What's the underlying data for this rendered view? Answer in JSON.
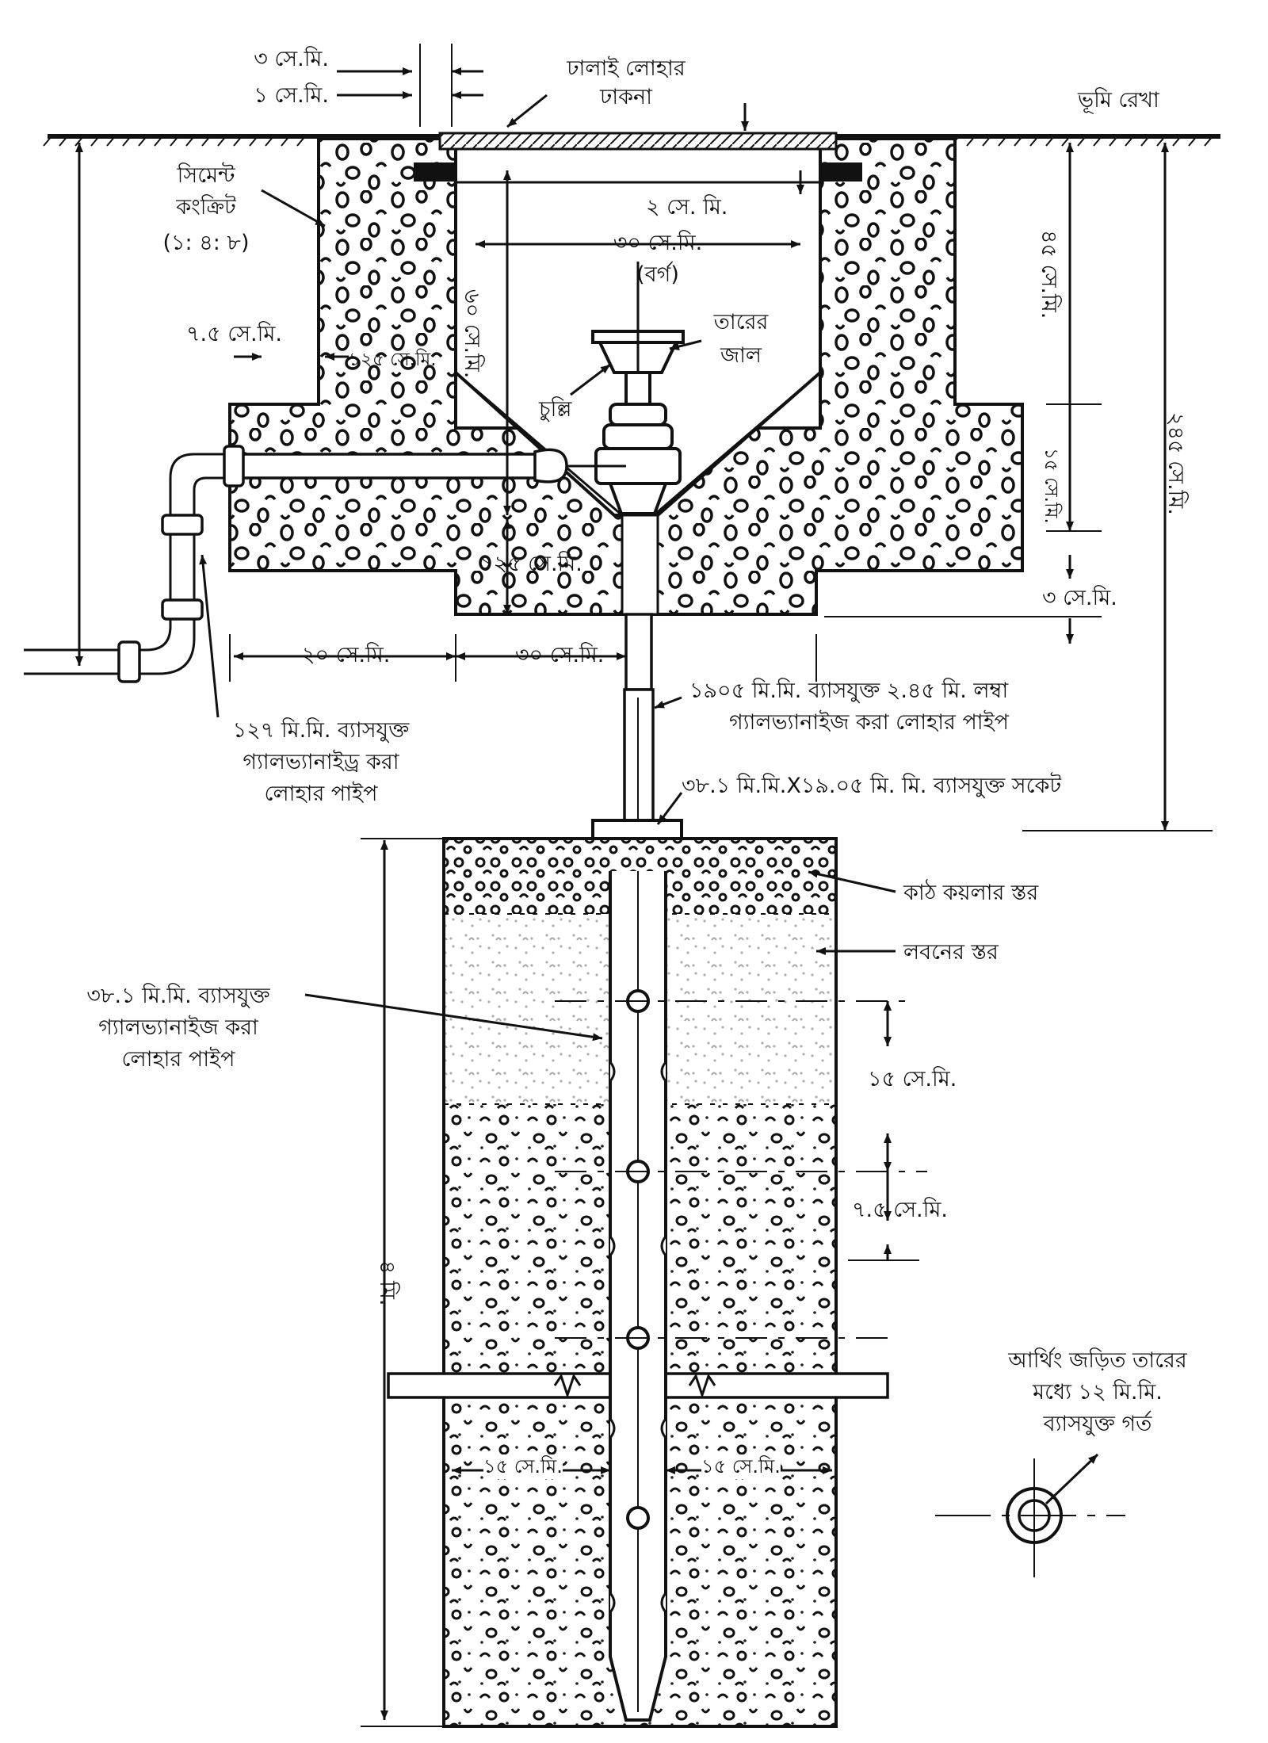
{
  "diagram": {
    "labels": {
      "top_3cm": "৩ সে.মি.",
      "top_1cm": "১ সে.মি.",
      "cast_iron_cover_line1": "ঢালাই লোহার",
      "cast_iron_cover_line2": "ঢাকনা",
      "ground_line": "ভূমি রেখা",
      "cement_concrete_line1": "সিমেন্ট",
      "cement_concrete_line2": "কংক্রিট",
      "cement_concrete_line3": "(১: ৪: ৮)",
      "dim_2cm": "২ সে. মি.",
      "dim_30cm_square_line1": "৩০ সে.মি.",
      "dim_30cm_square_line2": "(বর্গ)",
      "dim_45cm": "৪৫ সে.মি.",
      "dim_7_5cm_left": "৭.৫ সে.মি.",
      "dim_125cm_inner": "১২৫ সে.মি.",
      "dim_60cm": "৬০ সে.মি.",
      "wire_mesh_line1": "তারের",
      "wire_mesh_line2": "জাল",
      "funnel": "চুল্লি",
      "dim_15cm_right": "১৫ সে.মি.",
      "dim_245cm": "২৪৫ সে.মি.",
      "dim_125cm_lower": "১২৫ সে.মি.",
      "dim_3cm_right": "৩ সে.মি.",
      "dim_20cm": "২০ সে.মি.",
      "dim_30cm_bottom": "৩০ সে.মি.",
      "pipe_1905_line1": "১৯০৫ মি.মি. ব্যাসযুক্ত ২.৪৫ মি. লম্বা",
      "pipe_1905_line2": "গ্যালভ্যানাইজ করা লোহার পাইপ",
      "pipe_127_line1": "১২৭ মি.মি. ব্যাসযুক্ত",
      "pipe_127_line2": "গ্যালভ্যানাইড্র করা",
      "pipe_127_line3": "লোহার পাইপ",
      "socket": "৩৮.১ মি.মি.X১৯.০৫ মি. মি. ব্যাসযুক্ত সকেট",
      "charcoal_layer": "কাঠ কয়লার স্তর",
      "salt_layer": "লবনের স্তর",
      "pipe_38_line1": "৩৮.১ মি.মি. ব্যাসযুক্ত",
      "pipe_38_line2": "গ্যালভ্যানাইজ করা",
      "pipe_38_line3": "লোহার পাইপ",
      "dim_15cm_lower": "১৫ সে.মি.",
      "dim_7_5cm_lower": "৭.৫ সে.মি.",
      "dim_4m": "৪ মি.",
      "dim_15cm_bottom_left": "১৫ সে.মি.",
      "dim_15cm_bottom_right": "১৫ সে.মি.",
      "earthing_hole_line1": "আর্থিং জড়িত তারের",
      "earthing_hole_line2": "মধ্যে ১২ মি.মি.",
      "earthing_hole_line3": "ব্যাসযুক্ত গর্ত"
    }
  }
}
